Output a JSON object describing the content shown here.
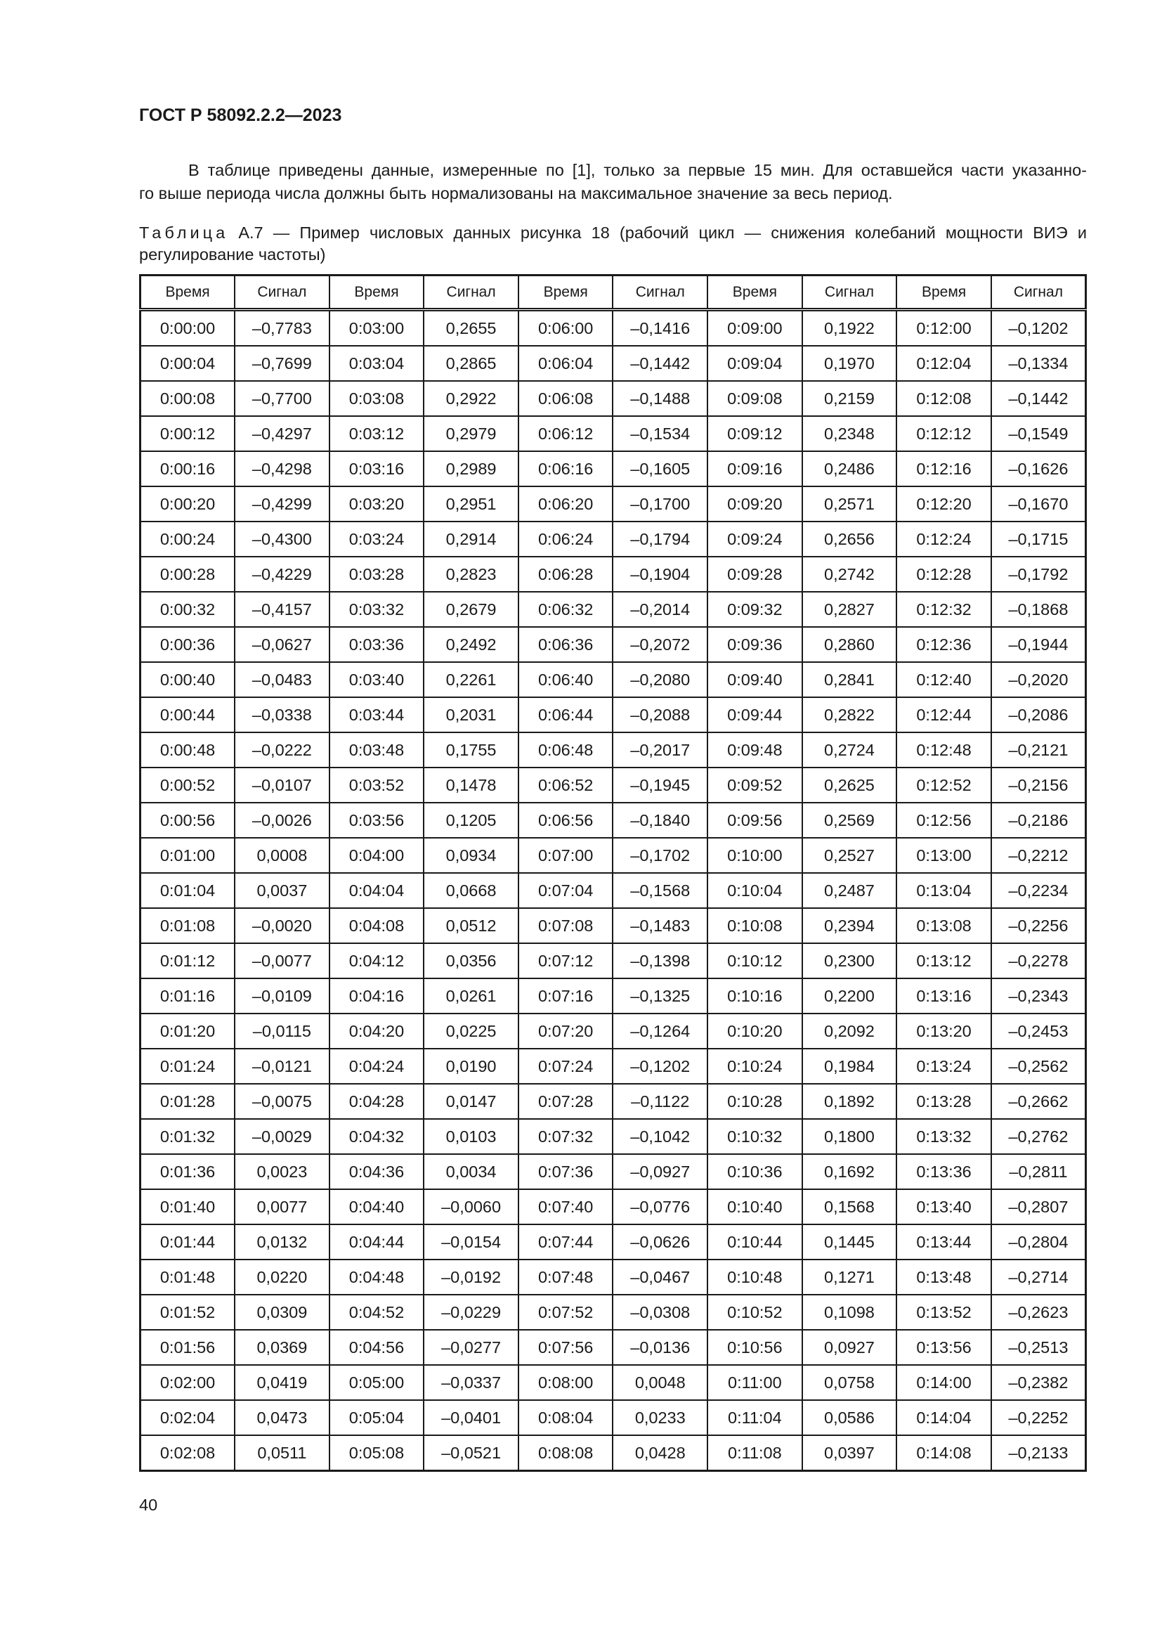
{
  "document_header": "ГОСТ Р 58092.2.2—2023",
  "paragraph": {
    "line1": "В таблице приведены данные, измеренные по [1], только за первые 15 мин. Для оставшейся части указанно-",
    "line2": "го выше периода числа должны быть нормализованы на максимальное значение за весь период."
  },
  "caption": {
    "label": "Таблица",
    "line1": " А.7 — Пример числовых данных рисунка 18 (рабочий цикл — снижения колебаний мощности ВИЭ и",
    "line2": "регулирование частоты)"
  },
  "table": {
    "headers": [
      "Время",
      "Сигнал",
      "Время",
      "Сигнал",
      "Время",
      "Сигнал",
      "Время",
      "Сигнал",
      "Время",
      "Сигнал"
    ],
    "rows": [
      [
        "0:00:00",
        "–0,7783",
        "0:03:00",
        "0,2655",
        "0:06:00",
        "–0,1416",
        "0:09:00",
        "0,1922",
        "0:12:00",
        "–0,1202"
      ],
      [
        "0:00:04",
        "–0,7699",
        "0:03:04",
        "0,2865",
        "0:06:04",
        "–0,1442",
        "0:09:04",
        "0,1970",
        "0:12:04",
        "–0,1334"
      ],
      [
        "0:00:08",
        "–0,7700",
        "0:03:08",
        "0,2922",
        "0:06:08",
        "–0,1488",
        "0:09:08",
        "0,2159",
        "0:12:08",
        "–0,1442"
      ],
      [
        "0:00:12",
        "–0,4297",
        "0:03:12",
        "0,2979",
        "0:06:12",
        "–0,1534",
        "0:09:12",
        "0,2348",
        "0:12:12",
        "–0,1549"
      ],
      [
        "0:00:16",
        "–0,4298",
        "0:03:16",
        "0,2989",
        "0:06:16",
        "–0,1605",
        "0:09:16",
        "0,2486",
        "0:12:16",
        "–0,1626"
      ],
      [
        "0:00:20",
        "–0,4299",
        "0:03:20",
        "0,2951",
        "0:06:20",
        "–0,1700",
        "0:09:20",
        "0,2571",
        "0:12:20",
        "–0,1670"
      ],
      [
        "0:00:24",
        "–0,4300",
        "0:03:24",
        "0,2914",
        "0:06:24",
        "–0,1794",
        "0:09:24",
        "0,2656",
        "0:12:24",
        "–0,1715"
      ],
      [
        "0:00:28",
        "–0,4229",
        "0:03:28",
        "0,2823",
        "0:06:28",
        "–0,1904",
        "0:09:28",
        "0,2742",
        "0:12:28",
        "–0,1792"
      ],
      [
        "0:00:32",
        "–0,4157",
        "0:03:32",
        "0,2679",
        "0:06:32",
        "–0,2014",
        "0:09:32",
        "0,2827",
        "0:12:32",
        "–0,1868"
      ],
      [
        "0:00:36",
        "–0,0627",
        "0:03:36",
        "0,2492",
        "0:06:36",
        "–0,2072",
        "0:09:36",
        "0,2860",
        "0:12:36",
        "–0,1944"
      ],
      [
        "0:00:40",
        "–0,0483",
        "0:03:40",
        "0,2261",
        "0:06:40",
        "–0,2080",
        "0:09:40",
        "0,2841",
        "0:12:40",
        "–0,2020"
      ],
      [
        "0:00:44",
        "–0,0338",
        "0:03:44",
        "0,2031",
        "0:06:44",
        "–0,2088",
        "0:09:44",
        "0,2822",
        "0:12:44",
        "–0,2086"
      ],
      [
        "0:00:48",
        "–0,0222",
        "0:03:48",
        "0,1755",
        "0:06:48",
        "–0,2017",
        "0:09:48",
        "0,2724",
        "0:12:48",
        "–0,2121"
      ],
      [
        "0:00:52",
        "–0,0107",
        "0:03:52",
        "0,1478",
        "0:06:52",
        "–0,1945",
        "0:09:52",
        "0,2625",
        "0:12:52",
        "–0,2156"
      ],
      [
        "0:00:56",
        "–0,0026",
        "0:03:56",
        "0,1205",
        "0:06:56",
        "–0,1840",
        "0:09:56",
        "0,2569",
        "0:12:56",
        "–0,2186"
      ],
      [
        "0:01:00",
        "0,0008",
        "0:04:00",
        "0,0934",
        "0:07:00",
        "–0,1702",
        "0:10:00",
        "0,2527",
        "0:13:00",
        "–0,2212"
      ],
      [
        "0:01:04",
        "0,0037",
        "0:04:04",
        "0,0668",
        "0:07:04",
        "–0,1568",
        "0:10:04",
        "0,2487",
        "0:13:04",
        "–0,2234"
      ],
      [
        "0:01:08",
        "–0,0020",
        "0:04:08",
        "0,0512",
        "0:07:08",
        "–0,1483",
        "0:10:08",
        "0,2394",
        "0:13:08",
        "–0,2256"
      ],
      [
        "0:01:12",
        "–0,0077",
        "0:04:12",
        "0,0356",
        "0:07:12",
        "–0,1398",
        "0:10:12",
        "0,2300",
        "0:13:12",
        "–0,2278"
      ],
      [
        "0:01:16",
        "–0,0109",
        "0:04:16",
        "0,0261",
        "0:07:16",
        "–0,1325",
        "0:10:16",
        "0,2200",
        "0:13:16",
        "–0,2343"
      ],
      [
        "0:01:20",
        "–0,0115",
        "0:04:20",
        "0,0225",
        "0:07:20",
        "–0,1264",
        "0:10:20",
        "0,2092",
        "0:13:20",
        "–0,2453"
      ],
      [
        "0:01:24",
        "–0,0121",
        "0:04:24",
        "0,0190",
        "0:07:24",
        "–0,1202",
        "0:10:24",
        "0,1984",
        "0:13:24",
        "–0,2562"
      ],
      [
        "0:01:28",
        "–0,0075",
        "0:04:28",
        "0,0147",
        "0:07:28",
        "–0,1122",
        "0:10:28",
        "0,1892",
        "0:13:28",
        "–0,2662"
      ],
      [
        "0:01:32",
        "–0,0029",
        "0:04:32",
        "0,0103",
        "0:07:32",
        "–0,1042",
        "0:10:32",
        "0,1800",
        "0:13:32",
        "–0,2762"
      ],
      [
        "0:01:36",
        "0,0023",
        "0:04:36",
        "0,0034",
        "0:07:36",
        "–0,0927",
        "0:10:36",
        "0,1692",
        "0:13:36",
        "–0,2811"
      ],
      [
        "0:01:40",
        "0,0077",
        "0:04:40",
        "–0,0060",
        "0:07:40",
        "–0,0776",
        "0:10:40",
        "0,1568",
        "0:13:40",
        "–0,2807"
      ],
      [
        "0:01:44",
        "0,0132",
        "0:04:44",
        "–0,0154",
        "0:07:44",
        "–0,0626",
        "0:10:44",
        "0,1445",
        "0:13:44",
        "–0,2804"
      ],
      [
        "0:01:48",
        "0,0220",
        "0:04:48",
        "–0,0192",
        "0:07:48",
        "–0,0467",
        "0:10:48",
        "0,1271",
        "0:13:48",
        "–0,2714"
      ],
      [
        "0:01:52",
        "0,0309",
        "0:04:52",
        "–0,0229",
        "0:07:52",
        "–0,0308",
        "0:10:52",
        "0,1098",
        "0:13:52",
        "–0,2623"
      ],
      [
        "0:01:56",
        "0,0369",
        "0:04:56",
        "–0,0277",
        "0:07:56",
        "–0,0136",
        "0:10:56",
        "0,0927",
        "0:13:56",
        "–0,2513"
      ],
      [
        "0:02:00",
        "0,0419",
        "0:05:00",
        "–0,0337",
        "0:08:00",
        "0,0048",
        "0:11:00",
        "0,0758",
        "0:14:00",
        "–0,2382"
      ],
      [
        "0:02:04",
        "0,0473",
        "0:05:04",
        "–0,0401",
        "0:08:04",
        "0,0233",
        "0:11:04",
        "0,0586",
        "0:14:04",
        "–0,2252"
      ],
      [
        "0:02:08",
        "0,0511",
        "0:05:08",
        "–0,0521",
        "0:08:08",
        "0,0428",
        "0:11:08",
        "0,0397",
        "0:14:08",
        "–0,2133"
      ]
    ]
  },
  "page_number": "40"
}
